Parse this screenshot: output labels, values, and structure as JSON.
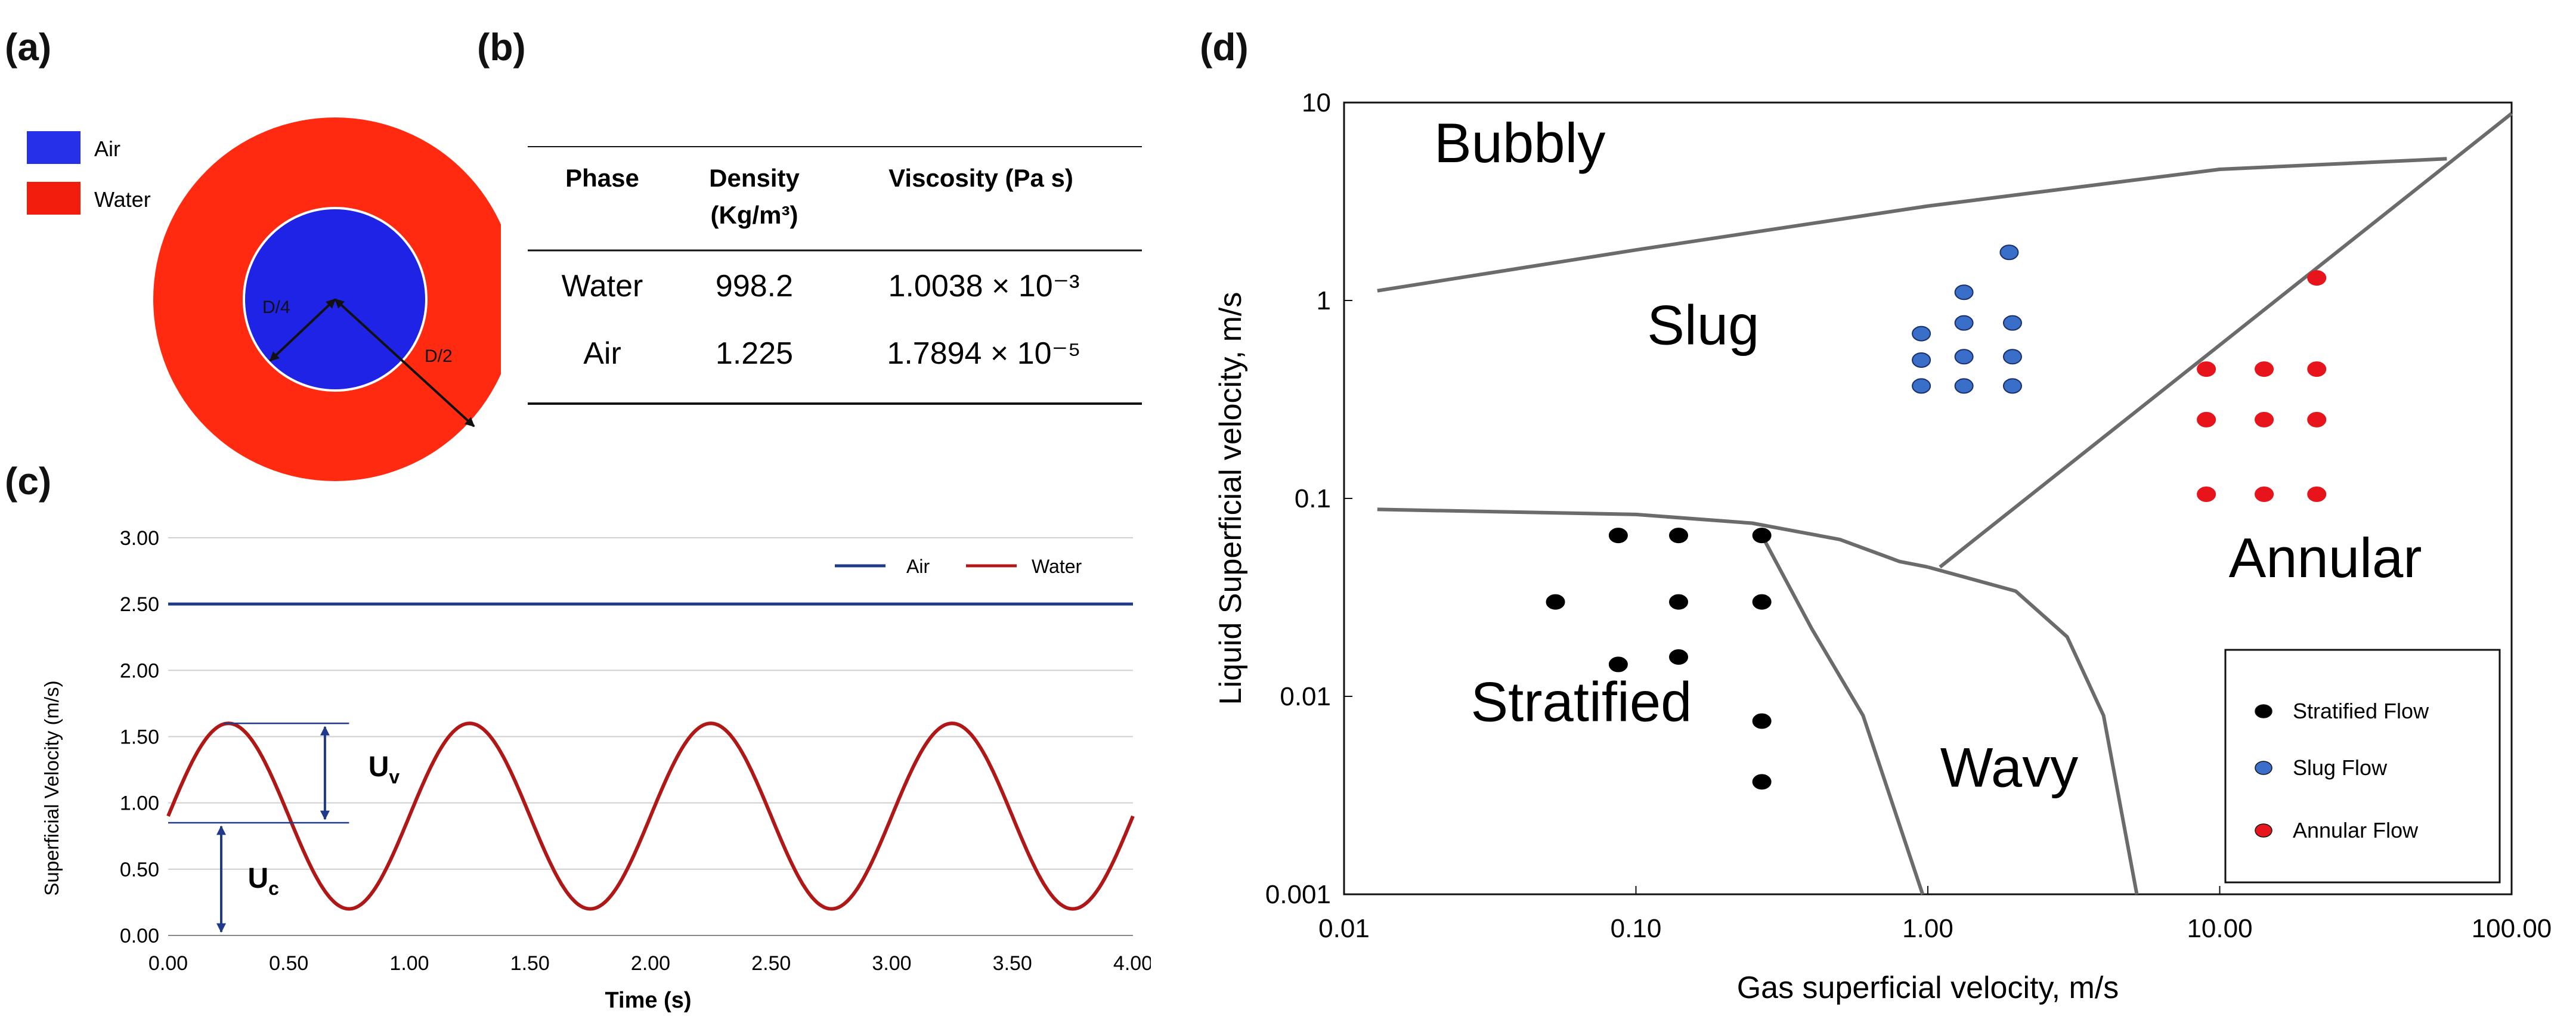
{
  "panel_labels": {
    "a": "(a)",
    "b": "(b)",
    "c": "(c)",
    "d": "(d)"
  },
  "cross_section": {
    "legend": [
      {
        "label": "Air",
        "color": "#2630e8"
      },
      {
        "label": "Water",
        "color": "#f21d0d"
      }
    ],
    "inner_color": "#1f23e6",
    "outer_color": "#ff2a0f",
    "labels": {
      "quarter": "D/4",
      "half": "D/2"
    }
  },
  "properties_table": {
    "headers": [
      "Phase",
      "Density",
      "(Kg/m³)",
      "Viscosity (Pa s)"
    ],
    "rows": [
      {
        "phase": "Water",
        "density": "998.2",
        "viscosity": "1.0038 × 10⁻³"
      },
      {
        "phase": "Air",
        "density": "1.225",
        "viscosity": "1.7894 × 10⁻⁵"
      }
    ]
  },
  "chart_data": [
    {
      "type": "line",
      "xlabel": "Time (s)",
      "ylabel": "Superficial Velocity (m/s)",
      "xlim": [
        0,
        4
      ],
      "ylim": [
        0,
        3
      ],
      "xticks": [
        "0.00",
        "0.50",
        "1.00",
        "1.50",
        "2.00",
        "2.50",
        "3.00",
        "3.50",
        "4.00"
      ],
      "yticks": [
        "0.00",
        "0.50",
        "1.00",
        "1.50",
        "2.00",
        "2.50",
        "3.00"
      ],
      "series": [
        {
          "name": "Air",
          "color": "#1f3a8a",
          "constant": 2.5
        },
        {
          "name": "Water",
          "color": "#b01818",
          "mean": 0.9,
          "amplitude": 0.7,
          "period": 1.0
        }
      ],
      "annotations": {
        "uv": "U",
        "uv_sub": "v",
        "uc": "U",
        "uc_sub": "c",
        "uv_range": [
          0.85,
          1.6
        ],
        "uc_range": [
          0,
          0.85
        ]
      }
    },
    {
      "type": "scatter",
      "xscale": "log",
      "yscale": "log",
      "xlabel": "Gas superficial velocity, m/s",
      "ylabel": "Liquid Superficial velocity, m/s",
      "xlim": [
        0.01,
        100
      ],
      "ylim": [
        0.001,
        10
      ],
      "xticks": [
        {
          "v": 0.01,
          "label": "0.01"
        },
        {
          "v": 0.1,
          "label": "0.10"
        },
        {
          "v": 1,
          "label": "1.00"
        },
        {
          "v": 10,
          "label": "10.00"
        },
        {
          "v": 100,
          "label": "100.00"
        }
      ],
      "yticks": [
        {
          "v": 0.001,
          "label": "0.001"
        },
        {
          "v": 0.01,
          "label": "0.01"
        },
        {
          "v": 0.1,
          "label": "0.1"
        },
        {
          "v": 1,
          "label": "1"
        },
        {
          "v": 10,
          "label": "10"
        }
      ],
      "regions": [
        {
          "label": "Bubbly",
          "x": 0.04,
          "y": 5.0
        },
        {
          "label": "Slug",
          "x": 0.17,
          "y": 0.6
        },
        {
          "label": "Stratified",
          "x": 0.065,
          "y": 0.0075
        },
        {
          "label": "Wavy",
          "x": 1.9,
          "y": 0.0035
        },
        {
          "label": "Annular",
          "x": 23,
          "y": 0.04
        }
      ],
      "boundaries": [
        {
          "name": "bubbly-slug",
          "points": [
            [
              0.013,
              1.12
            ],
            [
              0.1,
              1.8
            ],
            [
              1,
              3.0
            ],
            [
              10,
              4.6
            ],
            [
              60,
              5.2
            ]
          ]
        },
        {
          "name": "annular",
          "points": [
            [
              1.1,
              0.045
            ],
            [
              100,
              8.8
            ]
          ]
        },
        {
          "name": "stratified-top",
          "points": [
            [
              0.013,
              0.088
            ],
            [
              0.1,
              0.083
            ],
            [
              0.25,
              0.075
            ],
            [
              0.5,
              0.062
            ],
            [
              0.8,
              0.048
            ],
            [
              1.0,
              0.045
            ]
          ]
        },
        {
          "name": "wavy-annular",
          "points": [
            [
              1.0,
              0.045
            ],
            [
              2.0,
              0.034
            ],
            [
              3.0,
              0.02
            ],
            [
              4.0,
              0.008
            ],
            [
              5.2,
              0.001
            ]
          ]
        },
        {
          "name": "stratified-wavy",
          "points": [
            [
              0.27,
              0.065
            ],
            [
              0.4,
              0.022
            ],
            [
              0.6,
              0.008
            ],
            [
              0.96,
              0.001
            ]
          ]
        }
      ],
      "series": [
        {
          "name": "Stratified Flow",
          "color": "#000000",
          "points": [
            [
              0.087,
              0.065
            ],
            [
              0.14,
              0.065
            ],
            [
              0.27,
              0.065
            ],
            [
              0.053,
              0.03
            ],
            [
              0.14,
              0.03
            ],
            [
              0.27,
              0.03
            ],
            [
              0.087,
              0.0145
            ],
            [
              0.14,
              0.0158
            ],
            [
              0.27,
              0.0075
            ],
            [
              0.27,
              0.0037
            ]
          ]
        },
        {
          "name": "Slug Flow",
          "color": "#3a6fc9",
          "points": [
            [
              1.9,
              1.75
            ],
            [
              1.33,
              1.1
            ],
            [
              0.95,
              0.68
            ],
            [
              1.33,
              0.77
            ],
            [
              1.95,
              0.77
            ],
            [
              0.95,
              0.5
            ],
            [
              1.33,
              0.52
            ],
            [
              1.95,
              0.52
            ],
            [
              0.95,
              0.37
            ],
            [
              1.33,
              0.37
            ],
            [
              1.95,
              0.37
            ]
          ]
        },
        {
          "name": "Annular Flow",
          "color": "#e8141c",
          "points": [
            [
              21.5,
              1.3
            ],
            [
              9.0,
              0.45
            ],
            [
              14.2,
              0.45
            ],
            [
              21.5,
              0.45
            ],
            [
              9.0,
              0.25
            ],
            [
              14.2,
              0.25
            ],
            [
              21.5,
              0.25
            ],
            [
              9.0,
              0.105
            ],
            [
              14.2,
              0.105
            ],
            [
              21.5,
              0.105
            ]
          ]
        }
      ]
    }
  ]
}
